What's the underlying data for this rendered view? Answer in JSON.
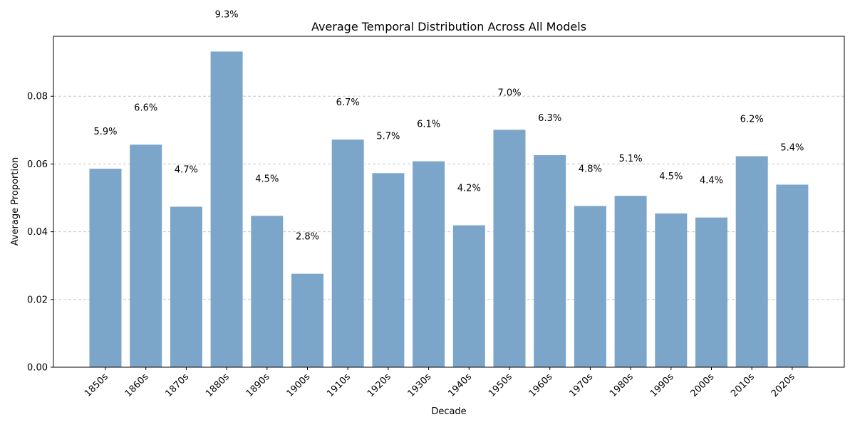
{
  "chart_data": {
    "type": "bar",
    "title": "Average Temporal Distribution Across All Models",
    "xlabel": "Decade",
    "ylabel": "Average Proportion",
    "ylim": [
      0,
      0.0977
    ],
    "yticks": [
      "0.00",
      "0.02",
      "0.04",
      "0.06",
      "0.08"
    ],
    "grid": "y-dashed",
    "categories": [
      "1850s",
      "1860s",
      "1870s",
      "1880s",
      "1890s",
      "1900s",
      "1910s",
      "1920s",
      "1930s",
      "1940s",
      "1950s",
      "1960s",
      "1970s",
      "1980s",
      "1990s",
      "2000s",
      "2010s",
      "2020s"
    ],
    "values": [
      0.0586,
      0.0657,
      0.0474,
      0.0932,
      0.0447,
      0.0276,
      0.0672,
      0.0573,
      0.0608,
      0.0419,
      0.0701,
      0.0626,
      0.0476,
      0.0506,
      0.0454,
      0.0442,
      0.0623,
      0.0539
    ],
    "data_labels": [
      "5.9%",
      "6.6%",
      "4.7%",
      "9.3%",
      "4.5%",
      "2.8%",
      "6.7%",
      "5.7%",
      "6.1%",
      "4.2%",
      "7.0%",
      "6.3%",
      "4.8%",
      "5.1%",
      "4.5%",
      "4.4%",
      "6.2%",
      "5.4%"
    ],
    "bar_color": "#7ba6ca",
    "grid_color": "#c8c8c8"
  }
}
